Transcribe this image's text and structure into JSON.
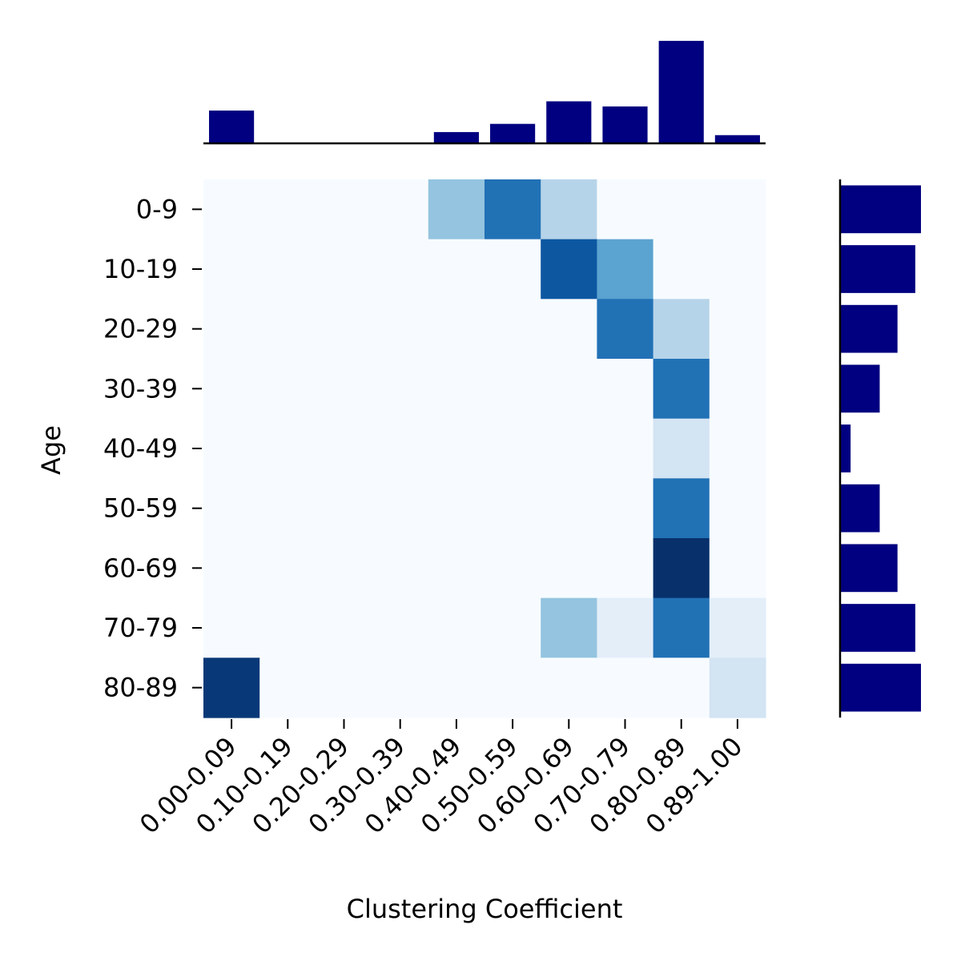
{
  "chart_data": {
    "type": "heatmap",
    "xlabel": "Clustering Coefficient",
    "ylabel": "Age",
    "x_categories": [
      "0.00-0.09",
      "0.10-0.19",
      "0.20-0.29",
      "0.30-0.39",
      "0.40-0.49",
      "0.50-0.59",
      "0.60-0.69",
      "0.70-0.79",
      "0.80-0.89",
      "0.89-1.00"
    ],
    "y_categories": [
      "0-9",
      "10-19",
      "20-29",
      "30-39",
      "40-49",
      "50-59",
      "60-69",
      "70-79",
      "80-89"
    ],
    "values": [
      [
        0,
        0,
        0,
        0,
        0.4,
        0.75,
        0.3,
        0,
        0,
        0
      ],
      [
        0,
        0,
        0,
        0,
        0,
        0,
        0.85,
        0.55,
        0,
        0
      ],
      [
        0,
        0,
        0,
        0,
        0,
        0,
        0,
        0.75,
        0.3,
        0
      ],
      [
        0,
        0,
        0,
        0,
        0,
        0,
        0,
        0,
        0.75,
        0
      ],
      [
        0,
        0,
        0,
        0,
        0,
        0,
        0,
        0,
        0.18,
        0
      ],
      [
        0,
        0,
        0,
        0,
        0,
        0,
        0,
        0,
        0.75,
        0
      ],
      [
        0,
        0,
        0,
        0,
        0,
        0,
        0,
        0,
        1.0,
        0
      ],
      [
        0,
        0,
        0,
        0,
        0,
        0,
        0.4,
        0.1,
        0.75,
        0.1
      ],
      [
        0.97,
        0,
        0,
        0,
        0,
        0,
        0,
        0,
        0,
        0.18
      ]
    ],
    "colormap": "Blues",
    "top_marginal": {
      "orientation": "vertical",
      "values": [
        0.32,
        0,
        0,
        0,
        0.11,
        0.19,
        0.41,
        0.36,
        1.0,
        0.08
      ],
      "color": "#000080"
    },
    "right_marginal": {
      "orientation": "horizontal",
      "values": [
        1.0,
        0.93,
        0.71,
        0.49,
        0.13,
        0.49,
        0.71,
        0.93,
        1.0
      ],
      "color": "#000080"
    },
    "grid": false,
    "legend": "none"
  }
}
